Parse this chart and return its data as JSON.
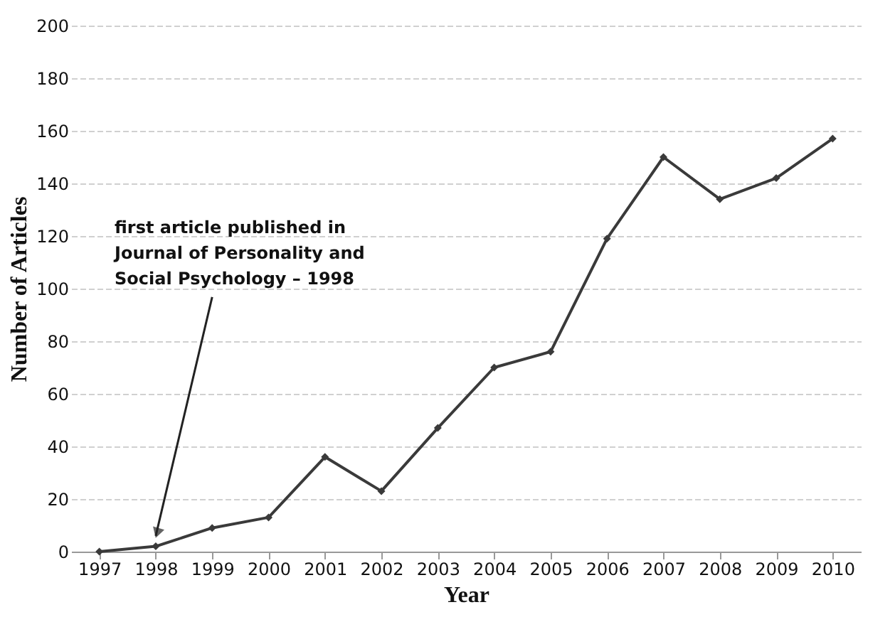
{
  "chart_data": {
    "type": "line",
    "xlabel": "Year",
    "ylabel": "Number of Articles",
    "categories": [
      "1997",
      "1998",
      "1999",
      "2000",
      "2001",
      "2002",
      "2003",
      "2004",
      "2005",
      "2006",
      "2007",
      "2008",
      "2009",
      "2010"
    ],
    "series": [
      {
        "color": "#3a3a3a",
        "values": [
          0,
          2,
          9,
          13,
          36,
          23,
          47,
          70,
          76,
          119,
          150,
          134,
          142,
          157
        ]
      }
    ],
    "ylim": [
      0,
      200
    ],
    "yticks": [
      0,
      20,
      40,
      60,
      80,
      100,
      120,
      140,
      160,
      180,
      200
    ],
    "grid": "y",
    "marker": "diamond",
    "line_style": "solid",
    "annotations": [
      {
        "text": "first article published in\nJournal of Personality and\nSocial Psychology  – 1998",
        "x": "1998",
        "y": 2
      }
    ]
  }
}
